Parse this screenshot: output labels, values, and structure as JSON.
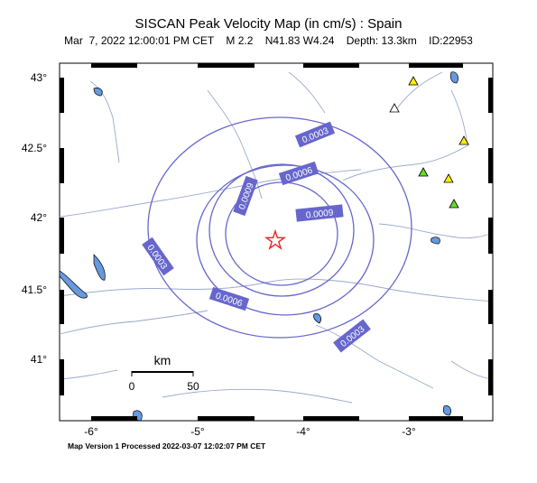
{
  "header": {
    "title": "SISCAN Peak Velocity Map (in cm/s) : Spain",
    "subtitle": "Mar  7, 2022 12:00:01 PM CET    M 2.2    N41.83 W4.24    Depth: 13.3km    ID:22953"
  },
  "footer": {
    "text": "Map Version 1 Processed 2022-03-07 12:02:07 PM CET"
  },
  "axes": {
    "lat_labels": [
      "43°",
      "42.5°",
      "42°",
      "41.5°",
      "41°"
    ],
    "lon_labels": [
      "-6°",
      "-5°",
      "-4°",
      "-3°"
    ]
  },
  "scale_bar": {
    "unit": "km",
    "start": "0",
    "end": "50"
  },
  "contours": {
    "color": "#6666cc",
    "labels": [
      "0.0003",
      "0.0006",
      "0.0009",
      "0.0009",
      "0.0003",
      "0.0006",
      "0.0003"
    ]
  },
  "epicenter": {
    "symbol": "star-icon",
    "color": "#ee2222"
  },
  "stations": {
    "colors": {
      "yellow": "#ffee00",
      "green": "#66dd22",
      "white": "#ffffff"
    }
  },
  "water_color": "#6699dd"
}
